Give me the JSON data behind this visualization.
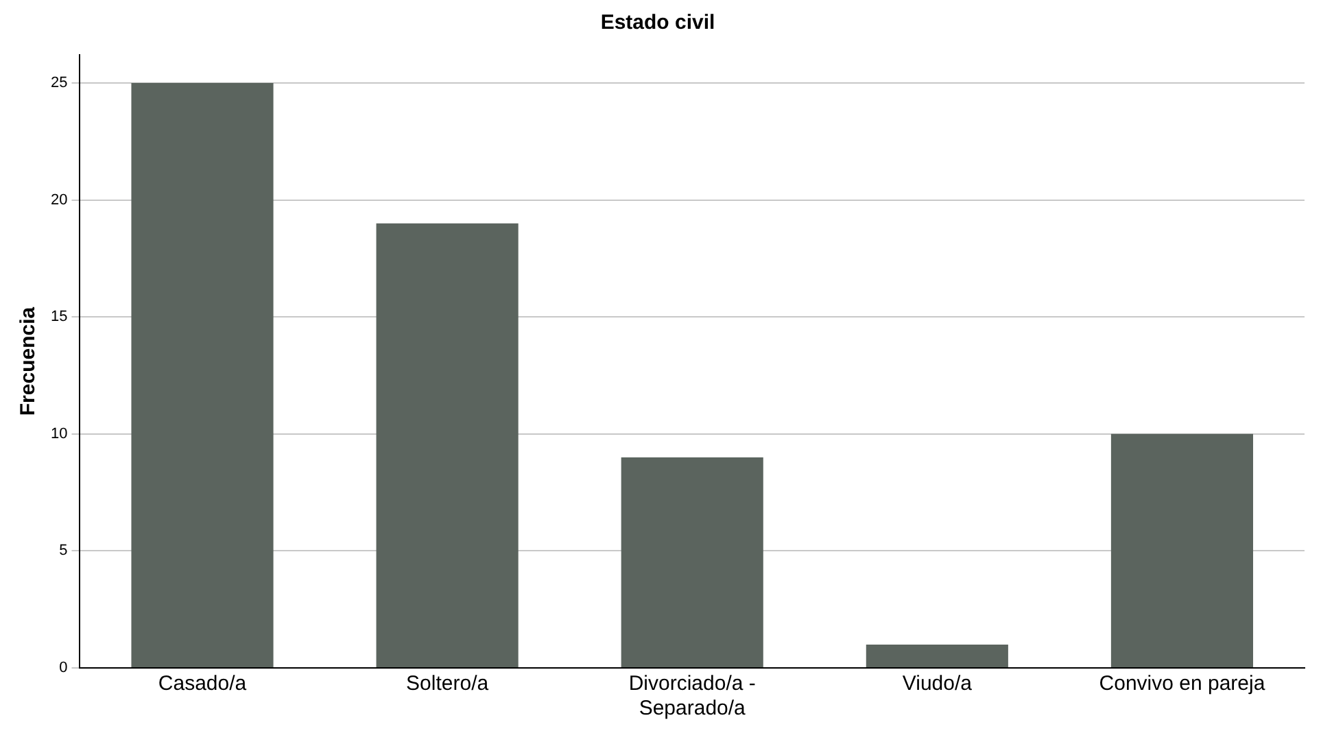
{
  "chart_data": {
    "type": "bar",
    "title": "Estado civil",
    "ylabel": "Frecuencia",
    "categories": [
      "Casado/a",
      "Soltero/a",
      "Divorciado/a - Separado/a",
      "Viudo/a",
      "Convivo en pareja"
    ],
    "values": [
      25,
      19,
      9,
      1,
      10
    ],
    "color": "#5b645e",
    "ylim": [
      0,
      26.2
    ],
    "yticks": [
      0,
      5,
      10,
      15,
      20,
      25
    ],
    "grid": "y",
    "legend": false
  }
}
